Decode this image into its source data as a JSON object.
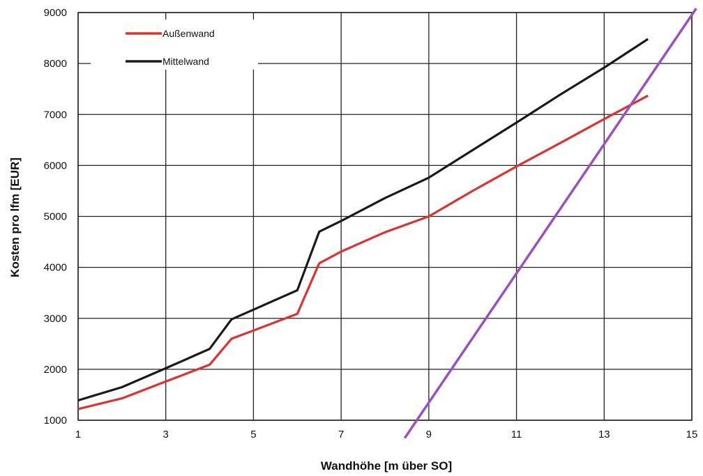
{
  "chart_data": {
    "type": "line",
    "xlabel": "Wandhöhe [m über SO]",
    "ylabel": "Kosten pro lfm [EUR]",
    "xlim": [
      1,
      15
    ],
    "ylim": [
      1000,
      9000
    ],
    "x_ticks": [
      1,
      3,
      5,
      7,
      9,
      11,
      13,
      15
    ],
    "y_ticks": [
      1000,
      2000,
      3000,
      4000,
      5000,
      6000,
      7000,
      8000,
      9000
    ],
    "x_gridlines": [
      1,
      3,
      5,
      7,
      9,
      11,
      13,
      15
    ],
    "grid": true,
    "legend_position": "top-left",
    "series": [
      {
        "name": "Außenwand",
        "color": "#e03030",
        "points": [
          [
            1,
            1220
          ],
          [
            2,
            1430
          ],
          [
            3,
            1760
          ],
          [
            4,
            2090
          ],
          [
            4.5,
            2600
          ],
          [
            5,
            2760
          ],
          [
            6,
            3090
          ],
          [
            6.5,
            4080
          ],
          [
            7,
            4310
          ],
          [
            8,
            4690
          ],
          [
            9,
            5000
          ],
          [
            10,
            5500
          ],
          [
            11,
            5980
          ],
          [
            12,
            6440
          ],
          [
            13,
            6910
          ],
          [
            14,
            7370
          ]
        ]
      },
      {
        "name": "Mittelwand",
        "color": "#1a1a1a",
        "points": [
          [
            1,
            1390
          ],
          [
            2,
            1650
          ],
          [
            3,
            2020
          ],
          [
            4,
            2400
          ],
          [
            4.5,
            2980
          ],
          [
            5,
            3170
          ],
          [
            6,
            3550
          ],
          [
            6.5,
            4700
          ],
          [
            7,
            4910
          ],
          [
            8,
            5360
          ],
          [
            9,
            5760
          ],
          [
            10,
            6300
          ],
          [
            11,
            6840
          ],
          [
            12,
            7390
          ],
          [
            13,
            7920
          ],
          [
            14,
            8480
          ]
        ]
      }
    ],
    "overlay_line": {
      "color": "#9b4fc0",
      "points": [
        [
          8.45,
          650
        ],
        [
          15.1,
          9080
        ]
      ]
    }
  }
}
